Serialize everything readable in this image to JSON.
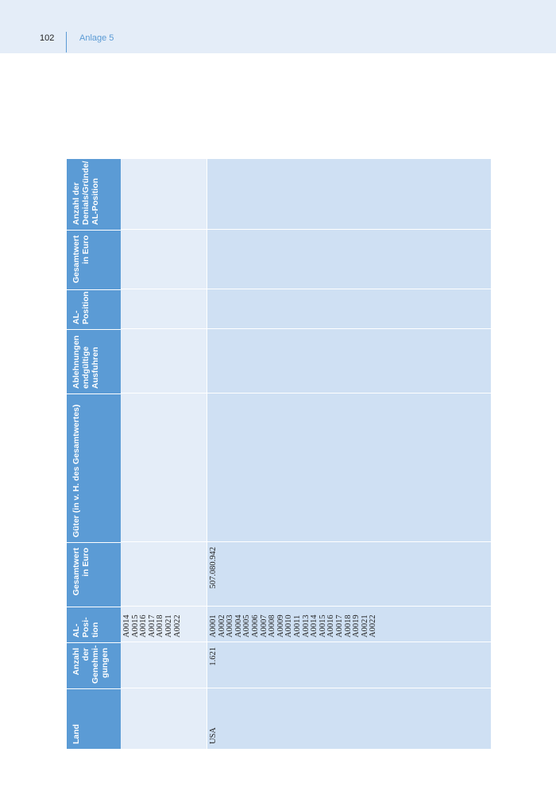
{
  "header": {
    "page_number": "102",
    "title": "Anlage 5"
  },
  "table": {
    "columns": [
      [
        "Land"
      ],
      [
        "Anzahl",
        "der",
        "Genehmi-",
        "gungen"
      ],
      [
        "AL-",
        "Posi-",
        "tion"
      ],
      [
        "Gesamtwert",
        "in Euro"
      ],
      [
        "Güter (in v. H. des Gesamtwertes)"
      ],
      [
        "Ablehnungen",
        "endgültige",
        "Ausfuhren"
      ],
      [
        "AL-",
        "Position"
      ],
      [
        "Gesamtwert",
        "in Euro"
      ],
      [
        "Anzahl der",
        "Denials/Gründe/",
        "AL-Position"
      ]
    ],
    "prev_positions": [
      "A0014",
      "A0015",
      "A0016",
      "A0017",
      "A0018",
      "A0021",
      "A0022"
    ],
    "rows": [
      {
        "land": "USA",
        "anzahl": "1.621",
        "gesamtwert": "507.080.942",
        "positions": [
          "A0001",
          "A0002",
          "A0003",
          "A0004",
          "A0005",
          "A0006",
          "A0007",
          "A0008",
          "A0009",
          "A0010",
          "A0011",
          "A0013",
          "A0014",
          "A0015",
          "A0016",
          "A0017",
          "A0018",
          "A0019",
          "A0021",
          "A0022"
        ]
      }
    ]
  }
}
